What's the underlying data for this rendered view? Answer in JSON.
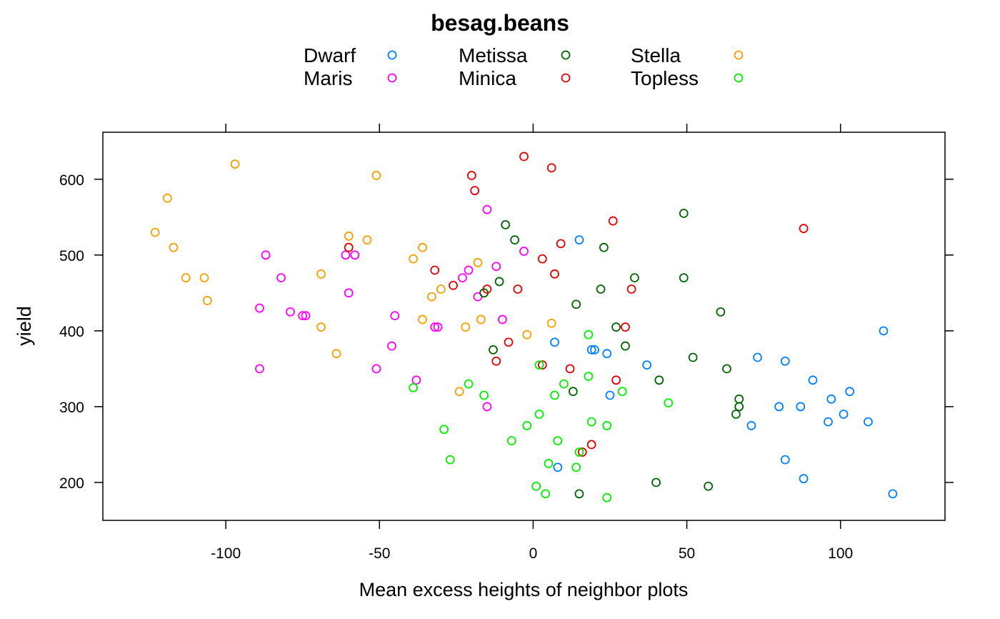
{
  "chart_data": {
    "type": "scatter",
    "title": "besag.beans",
    "xlabel": "Mean excess heights of neighbor plots",
    "ylabel": "yield",
    "xlim": [
      -140,
      134
    ],
    "ylim": [
      150,
      662
    ],
    "xticks": [
      -100,
      -50,
      0,
      50,
      100
    ],
    "yticks": [
      200,
      300,
      400,
      500,
      600
    ],
    "xtick_labels": [
      "-100",
      "-50",
      "0",
      "50",
      "100"
    ],
    "ytick_labels": [
      "200",
      "300",
      "400",
      "500",
      "600"
    ],
    "legend_position": "top",
    "grid": false,
    "series": [
      {
        "name": "Dwarf",
        "color": "#0080ff",
        "points": [
          [
            15,
            520
          ],
          [
            7,
            385
          ],
          [
            19,
            375
          ],
          [
            20,
            375
          ],
          [
            24,
            370
          ],
          [
            37,
            355
          ],
          [
            25,
            315
          ],
          [
            8,
            220
          ],
          [
            73,
            365
          ],
          [
            82,
            360
          ],
          [
            91,
            335
          ],
          [
            103,
            320
          ],
          [
            97,
            310
          ],
          [
            80,
            300
          ],
          [
            87,
            300
          ],
          [
            101,
            290
          ],
          [
            96,
            280
          ],
          [
            109,
            280
          ],
          [
            71,
            275
          ],
          [
            82,
            230
          ],
          [
            88,
            205
          ],
          [
            114,
            400
          ],
          [
            117,
            185
          ]
        ]
      },
      {
        "name": "Maris",
        "color": "#ff00ff",
        "points": [
          [
            -87,
            500
          ],
          [
            -61,
            500
          ],
          [
            -58,
            500
          ],
          [
            -82,
            470
          ],
          [
            -60,
            450
          ],
          [
            -89,
            430
          ],
          [
            -79,
            425
          ],
          [
            -75,
            420
          ],
          [
            -74,
            420
          ],
          [
            -45,
            420
          ],
          [
            -46,
            380
          ],
          [
            -51,
            350
          ],
          [
            -89,
            350
          ],
          [
            -38,
            335
          ],
          [
            -32,
            405
          ],
          [
            -31,
            405
          ],
          [
            -15,
            560
          ],
          [
            -3,
            505
          ],
          [
            -12,
            485
          ],
          [
            -21,
            480
          ],
          [
            -23,
            470
          ],
          [
            -18,
            445
          ],
          [
            -10,
            415
          ],
          [
            -15,
            300
          ]
        ]
      },
      {
        "name": "Metissa",
        "color": "#006400",
        "points": [
          [
            -9,
            540
          ],
          [
            -6,
            520
          ],
          [
            -11,
            465
          ],
          [
            -16,
            450
          ],
          [
            -13,
            375
          ],
          [
            14,
            435
          ],
          [
            22,
            455
          ],
          [
            23,
            510
          ],
          [
            33,
            470
          ],
          [
            27,
            405
          ],
          [
            30,
            380
          ],
          [
            13,
            320
          ],
          [
            15,
            185
          ],
          [
            41,
            335
          ],
          [
            40,
            200
          ],
          [
            49,
            555
          ],
          [
            49,
            470
          ],
          [
            52,
            365
          ],
          [
            57,
            195
          ],
          [
            61,
            425
          ],
          [
            63,
            350
          ],
          [
            67,
            310
          ],
          [
            67,
            300
          ],
          [
            66,
            290
          ]
        ]
      },
      {
        "name": "Minica",
        "color": "#e00000",
        "points": [
          [
            -3,
            630
          ],
          [
            6,
            615
          ],
          [
            -20,
            605
          ],
          [
            -19,
            585
          ],
          [
            26,
            545
          ],
          [
            88,
            535
          ],
          [
            9,
            515
          ],
          [
            -60,
            510
          ],
          [
            3,
            495
          ],
          [
            7,
            475
          ],
          [
            -32,
            480
          ],
          [
            -26,
            460
          ],
          [
            -15,
            455
          ],
          [
            -5,
            455
          ],
          [
            32,
            455
          ],
          [
            -8,
            385
          ],
          [
            30,
            405
          ],
          [
            -12,
            360
          ],
          [
            12,
            350
          ],
          [
            3,
            355
          ],
          [
            27,
            335
          ],
          [
            19,
            250
          ],
          [
            16,
            240
          ]
        ]
      },
      {
        "name": "Stella",
        "color": "#f5a000",
        "points": [
          [
            -97,
            620
          ],
          [
            -51,
            605
          ],
          [
            -119,
            575
          ],
          [
            -123,
            530
          ],
          [
            -60,
            525
          ],
          [
            -54,
            520
          ],
          [
            -117,
            510
          ],
          [
            -36,
            510
          ],
          [
            -39,
            495
          ],
          [
            -18,
            490
          ],
          [
            -69,
            475
          ],
          [
            -113,
            470
          ],
          [
            -107,
            470
          ],
          [
            -30,
            455
          ],
          [
            -33,
            445
          ],
          [
            -106,
            440
          ],
          [
            -36,
            415
          ],
          [
            -17,
            415
          ],
          [
            -69,
            405
          ],
          [
            -22,
            405
          ],
          [
            6,
            410
          ],
          [
            -2,
            395
          ],
          [
            -64,
            370
          ],
          [
            -24,
            320
          ]
        ]
      },
      {
        "name": "Topless",
        "color": "#00ee00",
        "points": [
          [
            18,
            395
          ],
          [
            -39,
            325
          ],
          [
            -21,
            330
          ],
          [
            2,
            355
          ],
          [
            18,
            340
          ],
          [
            10,
            330
          ],
          [
            29,
            320
          ],
          [
            -16,
            315
          ],
          [
            7,
            315
          ],
          [
            2,
            290
          ],
          [
            44,
            305
          ],
          [
            -2,
            275
          ],
          [
            19,
            280
          ],
          [
            24,
            275
          ],
          [
            -29,
            270
          ],
          [
            -7,
            255
          ],
          [
            8,
            255
          ],
          [
            15,
            240
          ],
          [
            -27,
            230
          ],
          [
            5,
            225
          ],
          [
            14,
            220
          ],
          [
            1,
            195
          ],
          [
            4,
            185
          ],
          [
            24,
            180
          ]
        ]
      }
    ]
  }
}
